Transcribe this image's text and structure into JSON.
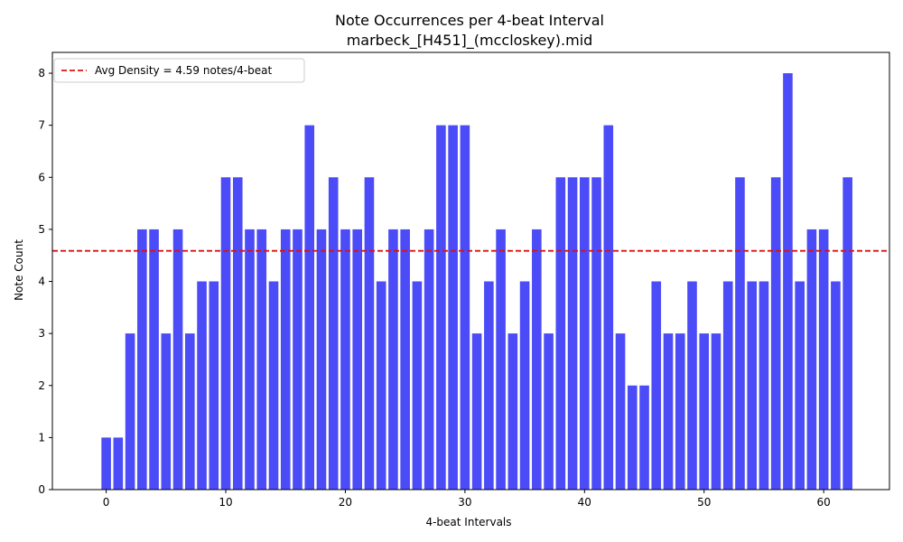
{
  "chart_data": {
    "type": "bar",
    "title": "Note Occurrences per 4-beat Interval",
    "subtitle": "marbeck_[H451]_(mccloskey).mid",
    "xlabel": "4-beat Intervals",
    "ylabel": "Note Count",
    "x": [
      0,
      1,
      2,
      3,
      4,
      5,
      6,
      7,
      8,
      9,
      10,
      11,
      12,
      13,
      14,
      15,
      16,
      17,
      18,
      19,
      20,
      21,
      22,
      23,
      24,
      25,
      26,
      27,
      28,
      29,
      30,
      31,
      32,
      33,
      34,
      35,
      36,
      37,
      38,
      39,
      40,
      41,
      42,
      43,
      44,
      45,
      46,
      47,
      48,
      49,
      50,
      51,
      52,
      53,
      54,
      55,
      56,
      57,
      58,
      59,
      60,
      61,
      62
    ],
    "values": [
      1,
      1,
      3,
      5,
      5,
      3,
      5,
      3,
      4,
      4,
      6,
      6,
      5,
      5,
      4,
      5,
      5,
      7,
      5,
      6,
      5,
      5,
      6,
      4,
      5,
      5,
      4,
      5,
      7,
      7,
      7,
      3,
      4,
      5,
      3,
      4,
      5,
      3,
      6,
      6,
      6,
      6,
      7,
      3,
      2,
      2,
      4,
      3,
      3,
      4,
      3,
      3,
      4,
      6,
      4,
      4,
      6,
      8,
      4,
      5,
      5,
      4,
      6
    ],
    "xlim": [
      -4.5,
      65.5
    ],
    "ylim": [
      0,
      8.4
    ],
    "xticks": [
      0,
      10,
      20,
      30,
      40,
      50,
      60
    ],
    "yticks": [
      0,
      1,
      2,
      3,
      4,
      5,
      6,
      7,
      8
    ],
    "bar_color": "#4b4bf7",
    "average": {
      "value": 4.587301587,
      "label": "Avg Density = 4.59 notes/4-beat",
      "color": "#dd1111"
    },
    "legend_position": "top-left",
    "grid": false
  }
}
